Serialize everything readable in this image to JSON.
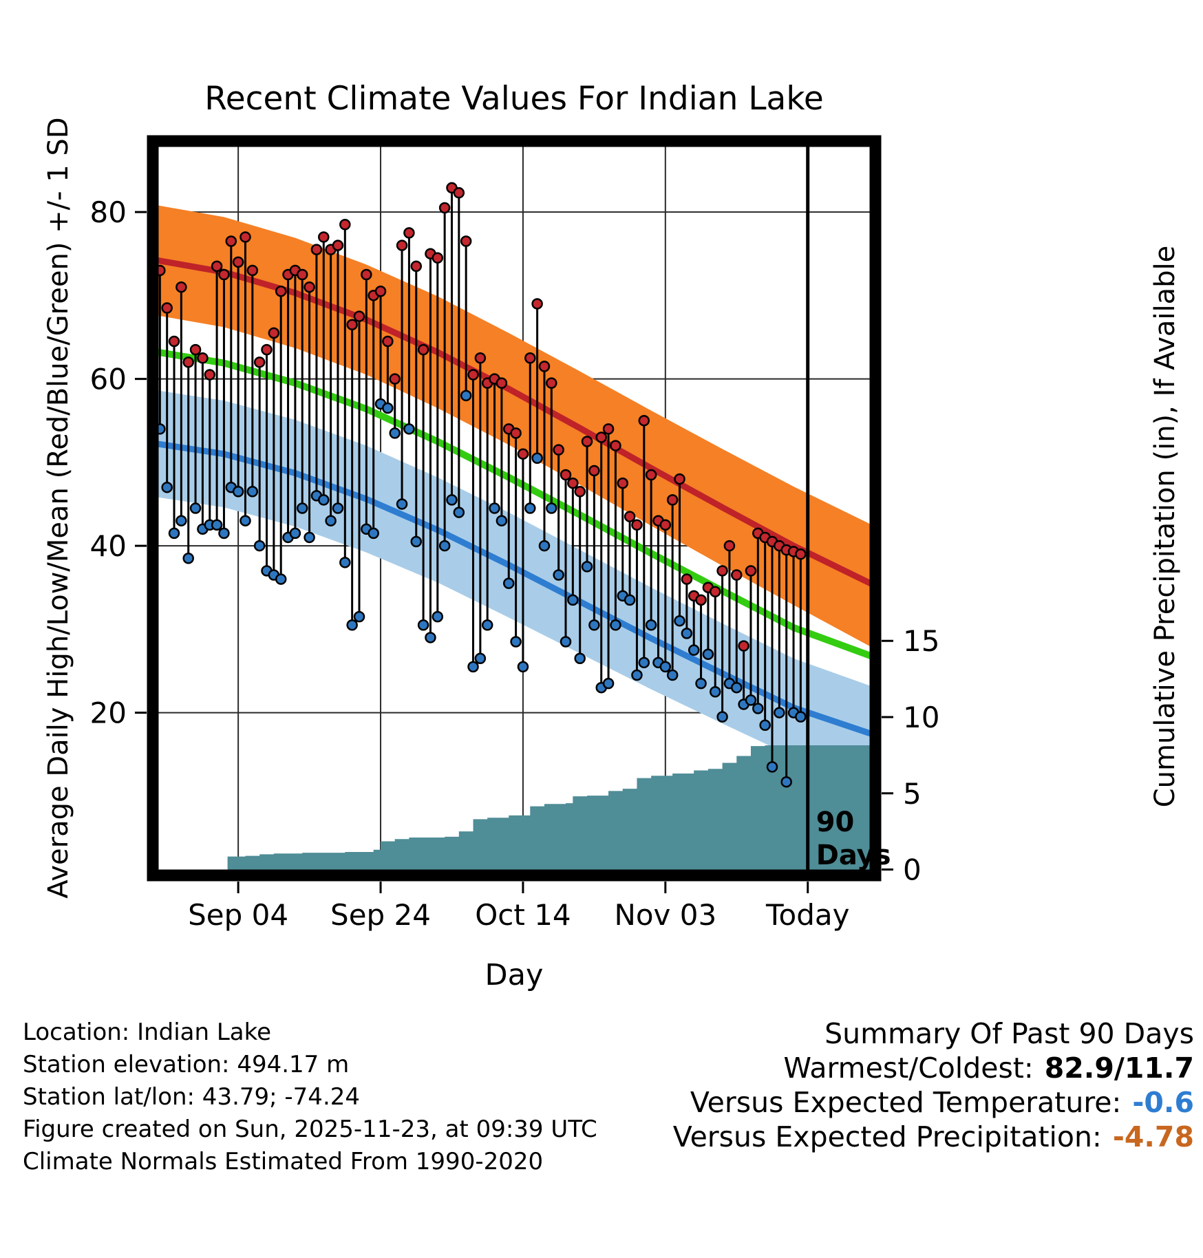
{
  "chart_data": {
    "type": "line",
    "title": "Recent Climate Values For Indian Lake",
    "xlabel": "Day",
    "ylabel_left": "Average Daily High/Low/Mean (Red/Blue/Green) +/- 1 SD",
    "ylabel_right": "Cumulative Precipitation (in), If Available",
    "x_tick_labels": [
      "Sep 04",
      "Sep 24",
      "Oct 14",
      "Nov 03",
      "Today"
    ],
    "x_tick_days": [
      12,
      32,
      52,
      72,
      92
    ],
    "x_range_days": [
      0,
      101.5
    ],
    "y_left": {
      "ticks": [
        20,
        40,
        60,
        80
      ],
      "range": [
        0.5,
        88.5
      ]
    },
    "y_right": {
      "ticks": [
        0,
        5,
        10,
        15
      ],
      "temp_equiv_zero": 1.2,
      "temp_per_inch": 1.827
    },
    "grid": true,
    "normals": {
      "days": [
        0,
        10,
        20,
        30,
        40,
        50,
        60,
        70,
        80,
        90,
        101.5
      ],
      "high_upper": [
        80.9,
        79.4,
        76.9,
        73.7,
        69.9,
        65.5,
        60.9,
        56.2,
        51.6,
        47.1,
        42.3
      ],
      "high_mean": [
        74.3,
        72.8,
        70.3,
        67.1,
        63.2,
        58.8,
        54.1,
        49.3,
        44.6,
        40.0,
        35.2
      ],
      "high_lower": [
        67.7,
        66.2,
        63.7,
        60.5,
        56.5,
        52.1,
        47.3,
        42.4,
        37.6,
        32.9,
        27.6
      ],
      "mean": [
        63.3,
        61.9,
        59.5,
        56.4,
        52.5,
        48.2,
        43.7,
        39.1,
        34.6,
        30.2,
        26.6
      ],
      "low_upper": [
        58.7,
        57.4,
        55.1,
        52.0,
        48.2,
        44.0,
        39.5,
        35.0,
        30.7,
        26.5,
        23.0
      ],
      "low_mean": [
        52.3,
        51.0,
        48.7,
        45.6,
        41.9,
        37.7,
        33.3,
        28.9,
        24.7,
        20.6,
        17.3
      ],
      "low_lower": [
        45.9,
        44.6,
        42.3,
        39.2,
        35.6,
        31.4,
        27.1,
        22.8,
        18.7,
        14.7,
        11.6
      ]
    },
    "daily": {
      "start_day": 1,
      "highs": [
        73,
        68.5,
        64.5,
        71,
        62,
        63.5,
        62.5,
        60.5,
        73.5,
        72.5,
        76.5,
        74,
        77,
        73,
        62,
        63.5,
        65.5,
        70.5,
        72.5,
        73,
        72.5,
        71,
        75.5,
        77,
        75.5,
        76,
        78.5,
        66.5,
        67.5,
        72.5,
        70,
        70.5,
        64.5,
        60,
        76,
        77.5,
        73.5,
        63.5,
        75,
        74.5,
        80.5,
        82.9,
        82.3,
        76.5,
        60.5,
        62.5,
        59.5,
        60,
        59.5,
        54,
        53.5,
        51,
        62.5,
        69,
        61.5,
        59.5,
        51.5,
        48.5,
        47.5,
        46.5,
        52.5,
        49,
        53,
        54,
        52,
        47.5,
        43.5,
        42.5,
        55,
        48.5,
        43,
        42.5,
        45.5,
        48,
        36,
        34,
        33.5,
        35,
        34.5,
        37,
        40,
        36.5,
        28,
        37,
        41.5,
        41,
        40.5,
        40,
        39.5,
        39.3,
        39
      ],
      "lows": [
        54,
        47,
        41.5,
        43,
        38.5,
        44.5,
        42,
        42.5,
        42.5,
        41.5,
        47,
        46.5,
        43,
        46.5,
        40,
        37,
        36.5,
        36,
        41,
        41.5,
        44.5,
        41,
        46,
        45.5,
        43,
        44.5,
        38,
        30.5,
        31.5,
        42,
        41.5,
        57,
        56.5,
        53.5,
        45,
        54,
        40.5,
        30.5,
        29,
        31.5,
        40,
        45.5,
        44,
        58,
        25.5,
        26.5,
        30.5,
        44.5,
        43,
        35.5,
        28.5,
        25.5,
        44.5,
        50.5,
        40,
        44.5,
        36.5,
        28.5,
        33.5,
        26.5,
        37.5,
        30.5,
        23,
        23.5,
        30.5,
        34,
        33.5,
        24.5,
        26,
        30.5,
        26,
        25.5,
        24.5,
        31,
        29.5,
        27.5,
        23.5,
        27,
        22.5,
        19.5,
        23.5,
        23,
        21,
        21.5,
        20.5,
        18.5,
        13.5,
        20,
        11.7,
        20,
        19.5
      ]
    },
    "precip_cumulative": {
      "days": [
        0,
        10,
        10.5,
        13,
        15,
        17,
        21,
        27,
        31,
        32,
        34,
        36,
        41,
        43,
        45,
        47,
        50,
        53,
        55,
        58,
        59,
        61,
        64,
        66,
        68,
        70,
        73,
        76,
        78,
        80,
        82,
        84,
        86,
        101.5
      ],
      "values": [
        0,
        0,
        0.85,
        0.9,
        1.0,
        1.05,
        1.1,
        1.15,
        1.3,
        1.85,
        2.0,
        2.1,
        2.15,
        2.5,
        3.3,
        3.4,
        3.55,
        4.15,
        4.3,
        4.35,
        4.8,
        4.85,
        5.15,
        5.3,
        6.0,
        6.15,
        6.3,
        6.5,
        6.6,
        7.0,
        7.45,
        8.1,
        8.15,
        8.15
      ]
    },
    "today_line_day": 92,
    "today_label_lines": [
      "90",
      "Days"
    ]
  },
  "footer": {
    "lines": [
      "Location: Indian Lake",
      "Station elevation: 494.17 m",
      "Station lat/lon: 43.79; -74.24",
      "Figure created on Sun, 2025-11-23, at 09:39 UTC",
      "Climate Normals Estimated From 1990-2020"
    ]
  },
  "summary": {
    "title": "Summary Of Past 90 Days",
    "rows": [
      {
        "label": "Warmest/Coldest:",
        "value": "82.9/11.7",
        "color": "#000000"
      },
      {
        "label": "Versus Expected Temperature:",
        "value": "-0.6",
        "color": "#2e7dd1"
      },
      {
        "label": "Versus Expected Precipitation:",
        "value": "-4.78",
        "color": "#c8671f"
      }
    ]
  },
  "colors": {
    "orange_band": "#f58025",
    "red_line": "#bf2228",
    "green_line": "#33cc11",
    "blue_band": "#a9cde8",
    "blue_line": "#2e7dd1",
    "teal_fill": "#4f8d97",
    "high_dot": "#c4272e",
    "low_dot": "#2e77c0",
    "stem": "#000000"
  }
}
